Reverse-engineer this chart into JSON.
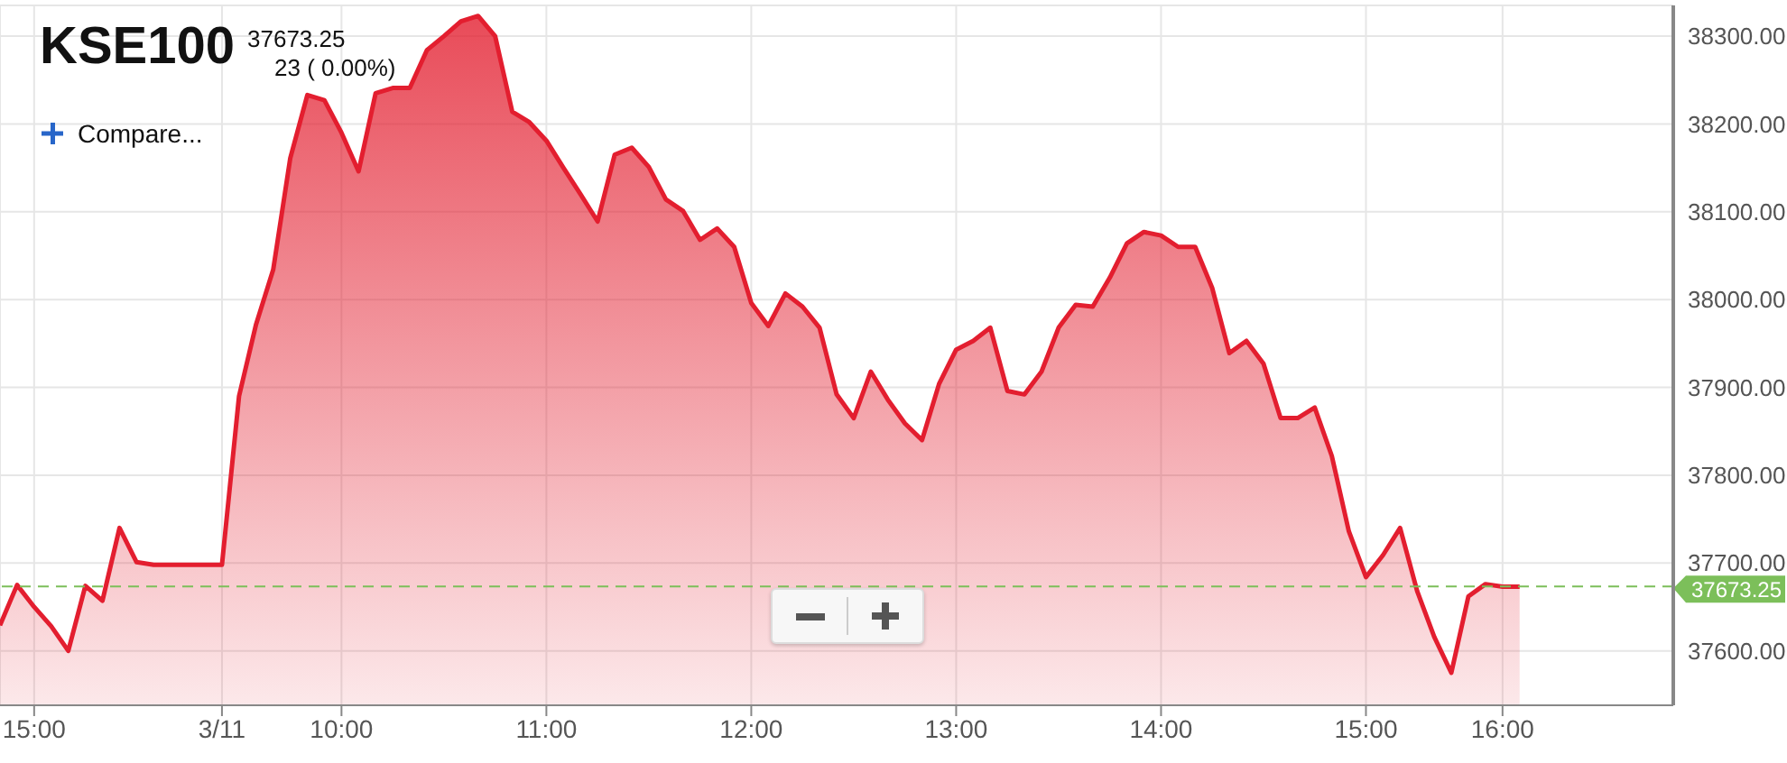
{
  "chart_data": {
    "type": "area",
    "title": "KSE100",
    "annotations": [
      "37673.25",
      "23 ( 0.00%)",
      "Compare..."
    ],
    "categories": [
      null,
      null,
      "15:00",
      null,
      null,
      null,
      null,
      null,
      null,
      null,
      null,
      null,
      null,
      "3/11",
      null,
      null,
      null,
      null,
      null,
      null,
      "10:00",
      null,
      null,
      null,
      null,
      null,
      null,
      null,
      null,
      null,
      null,
      null,
      "11:00",
      null,
      null,
      null,
      null,
      null,
      null,
      null,
      null,
      null,
      null,
      null,
      "12:00",
      null,
      null,
      null,
      null,
      null,
      null,
      null,
      null,
      null,
      null,
      null,
      "13:00",
      null,
      null,
      null,
      null,
      null,
      null,
      null,
      null,
      null,
      null,
      null,
      "14:00",
      null,
      null,
      null,
      null,
      null,
      null,
      null,
      null,
      null,
      null,
      null,
      "15:00",
      null,
      null,
      null,
      null,
      null,
      null,
      null,
      "16:00",
      null,
      null,
      null,
      null,
      null,
      null,
      null,
      null,
      null,
      null
    ],
    "series": [
      {
        "color": "#e31e2f",
        "values": [
          37629,
          37675,
          37650,
          37628,
          37600,
          37674,
          37657,
          37740,
          37701,
          37698,
          37698,
          37698,
          37698,
          37698,
          37890,
          37972,
          38034,
          38161,
          38233,
          38227,
          38190,
          38146,
          38235,
          38241,
          38241,
          38284,
          38300,
          38317,
          38323,
          38300,
          38214,
          38202,
          38181,
          38150,
          38120,
          38089,
          38165,
          38173,
          38151,
          38114,
          38101,
          38068,
          38081,
          38060,
          37996,
          37970,
          38007,
          37992,
          37968,
          37892,
          37865,
          37918,
          37886,
          37859,
          37840,
          37904,
          37943,
          37953,
          37968,
          37896,
          37892,
          37918,
          37968,
          37994,
          37992,
          38025,
          38064,
          38077,
          38073,
          38060,
          38060,
          38013,
          37939,
          37953,
          37927,
          37865,
          37865,
          37877,
          37822,
          37736,
          37684,
          37709,
          37740,
          37668,
          37616,
          37575,
          37662,
          37676,
          37673,
          37673,
          null,
          null,
          null,
          null,
          null,
          null,
          null,
          null,
          null
        ]
      }
    ],
    "ylim": [
      37538,
      38335
    ],
    "yticks": [
      {
        "value": 37600,
        "label": "37600.00"
      },
      {
        "value": 37700,
        "label": "37700.00"
      },
      {
        "value": 37800,
        "label": "37800.00"
      },
      {
        "value": 37900,
        "label": "37900.00"
      },
      {
        "value": 38000,
        "label": "38000.00"
      },
      {
        "value": 38100,
        "label": "38100.00"
      },
      {
        "value": 38200,
        "label": "38200.00"
      },
      {
        "value": 38300,
        "label": "38300.00"
      }
    ],
    "ref_lines": [
      {
        "axis": "y",
        "value": 37673.25,
        "label": "37673.25",
        "color": "#7cbf5a",
        "line_style": "dashed"
      }
    ],
    "grid": true,
    "marker": "none",
    "line_style": "solid"
  }
}
